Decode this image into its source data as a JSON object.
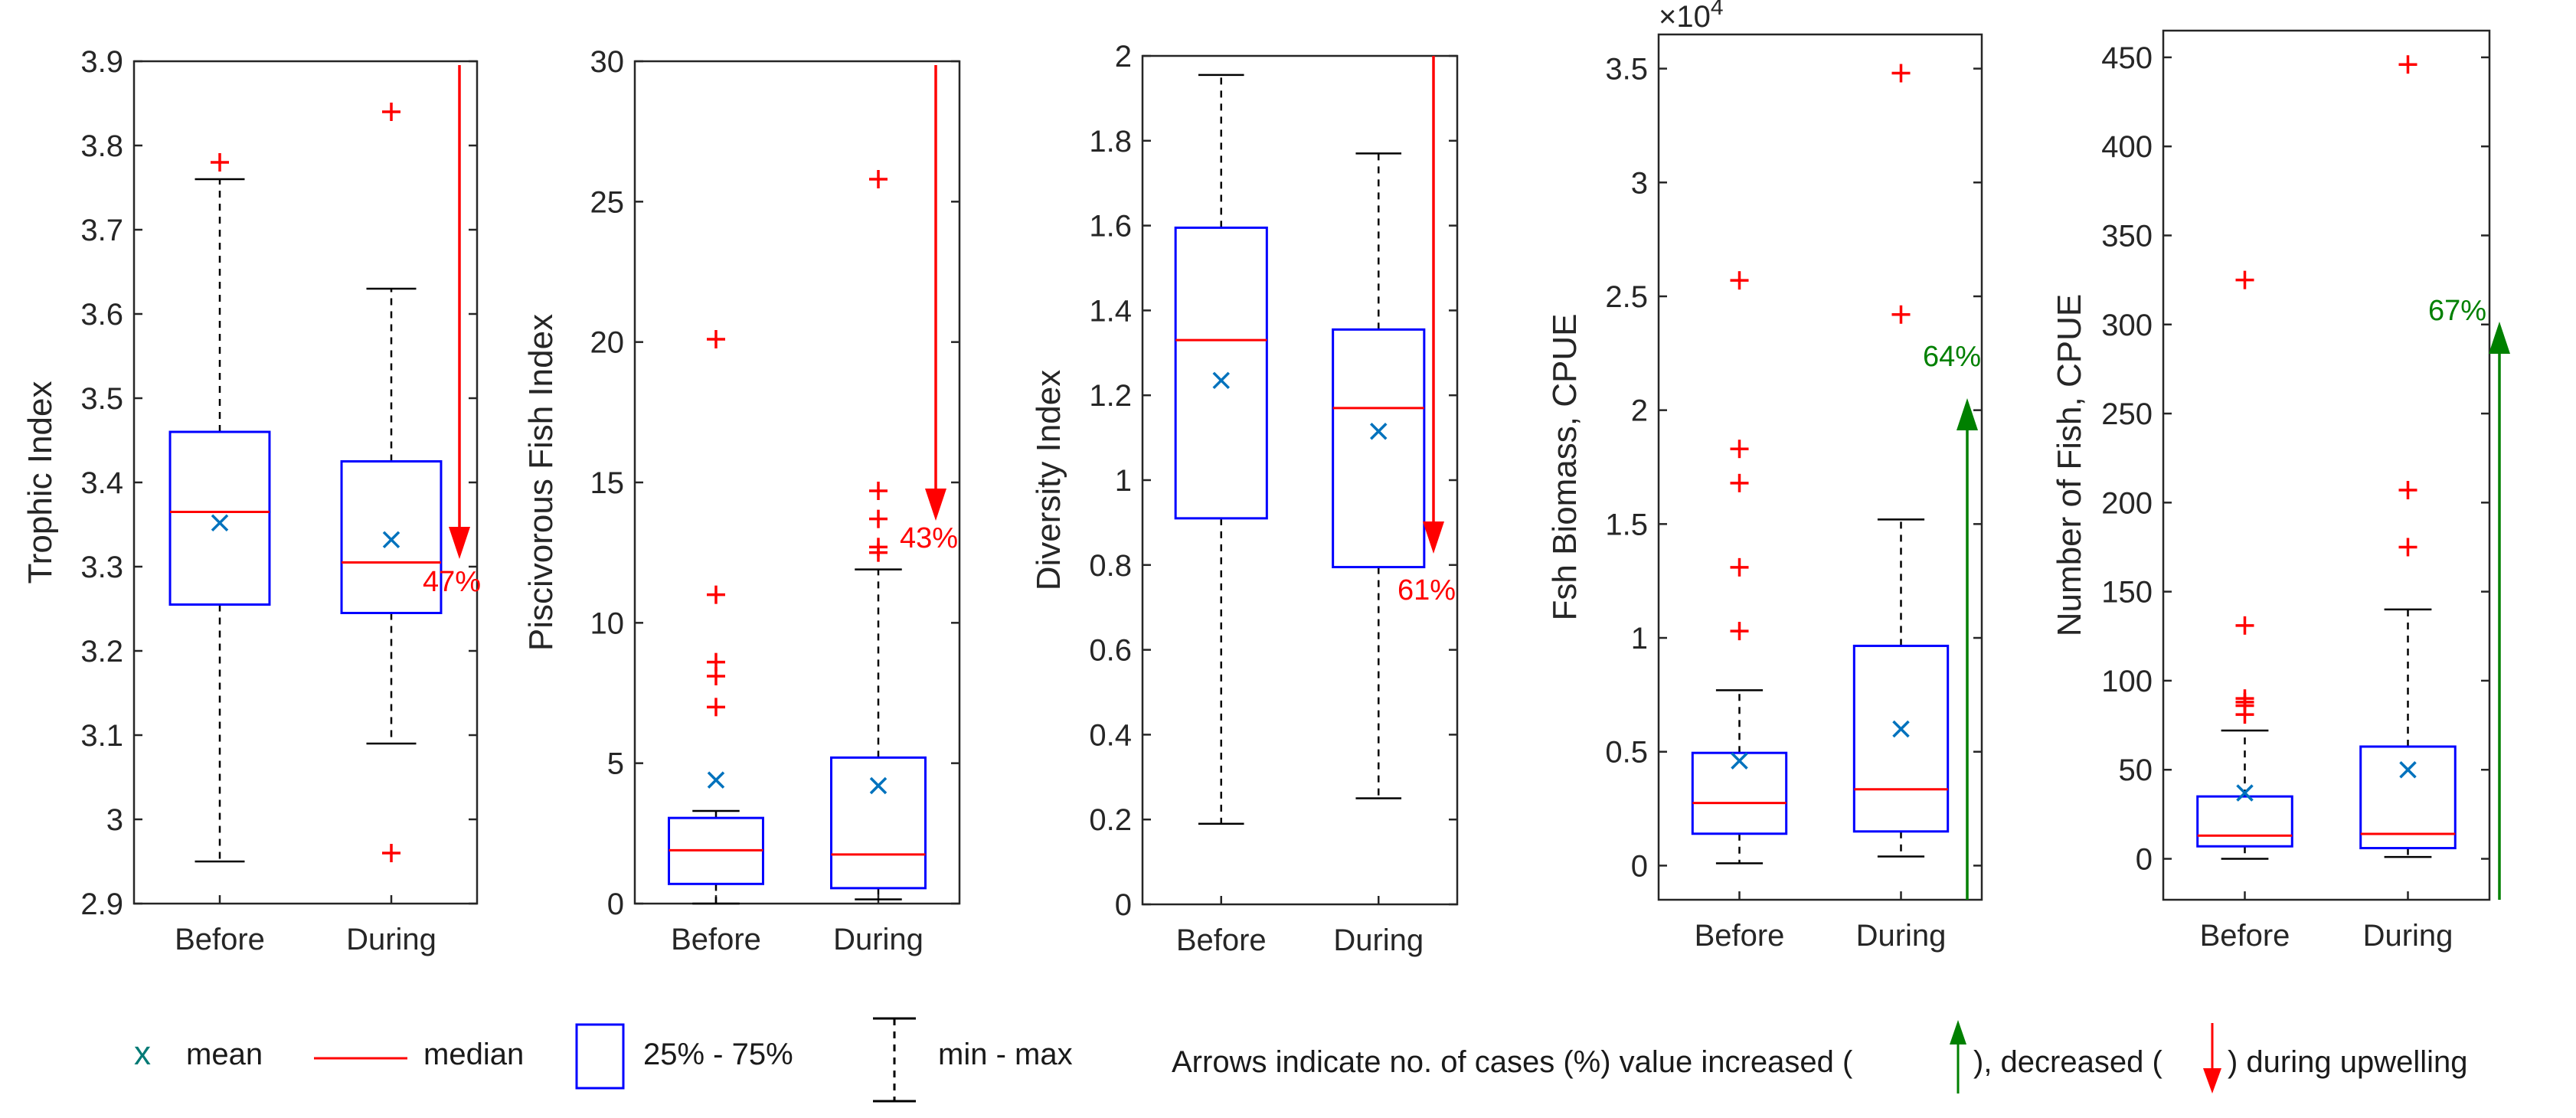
{
  "chart_data": [
    {
      "type": "boxplot",
      "ylabel": "Trophic Index",
      "categories": [
        "Before",
        "During"
      ],
      "ylim": [
        2.9,
        3.9
      ],
      "yticks": [
        2.9,
        3,
        3.1,
        3.2,
        3.3,
        3.4,
        3.5,
        3.6,
        3.7,
        3.8,
        3.9
      ],
      "exponent_label": "",
      "boxes": [
        {
          "category": "Before",
          "min": 2.95,
          "q1": 3.255,
          "median": 3.365,
          "q3": 3.46,
          "max": 3.76,
          "mean": 3.352,
          "outliers": [
            3.78
          ]
        },
        {
          "category": "During",
          "min": 3.09,
          "q1": 3.245,
          "median": 3.305,
          "q3": 3.425,
          "max": 3.63,
          "mean": 3.332,
          "outliers": [
            3.84,
            2.96
          ]
        }
      ],
      "arrow": {
        "direction": "decreased",
        "percent_label": "47%",
        "color": "#ff0000"
      }
    },
    {
      "type": "boxplot",
      "ylabel": "Piscivorous Fish Index",
      "categories": [
        "Before",
        "During"
      ],
      "ylim": [
        0,
        30
      ],
      "yticks": [
        0,
        5,
        10,
        15,
        20,
        25,
        30
      ],
      "exponent_label": "",
      "boxes": [
        {
          "category": "Before",
          "min": 0,
          "q1": 0.7,
          "median": 1.9,
          "q3": 3.05,
          "max": 3.3,
          "mean": 4.4,
          "outliers": [
            20.1,
            11.0,
            8.6,
            8.1,
            7.0
          ]
        },
        {
          "category": "During",
          "min": 0.15,
          "q1": 0.55,
          "median": 1.75,
          "q3": 5.2,
          "max": 11.9,
          "mean": 4.2,
          "outliers": [
            25.8,
            14.7,
            13.7,
            12.7,
            12.5
          ]
        }
      ],
      "arrow": {
        "direction": "decreased",
        "percent_label": "43%",
        "color": "#ff0000"
      }
    },
    {
      "type": "boxplot",
      "ylabel": "Diversity Index",
      "categories": [
        "Before",
        "During"
      ],
      "ylim": [
        0,
        2
      ],
      "yticks": [
        0,
        0.2,
        0.4,
        0.6,
        0.8,
        1,
        1.2,
        1.4,
        1.6,
        1.8,
        2
      ],
      "exponent_label": "",
      "boxes": [
        {
          "category": "Before",
          "min": 0.19,
          "q1": 0.91,
          "median": 1.33,
          "q3": 1.595,
          "max": 1.955,
          "mean": 1.235,
          "outliers": []
        },
        {
          "category": "During",
          "min": 0.25,
          "q1": 0.795,
          "median": 1.17,
          "q3": 1.355,
          "max": 1.77,
          "mean": 1.115,
          "outliers": []
        }
      ],
      "arrow": {
        "direction": "decreased",
        "percent_label": "61%",
        "color": "#ff0000"
      }
    },
    {
      "type": "boxplot",
      "ylabel": "Fsh Biomass, CPUE",
      "categories": [
        "Before",
        "During"
      ],
      "ylim": [
        -1500,
        36500
      ],
      "yticks": [
        0,
        5000,
        10000,
        15000,
        20000,
        25000,
        30000,
        35000
      ],
      "ytick_labels": [
        "0",
        "0.5",
        "1",
        "1.5",
        "2",
        "2.5",
        "3",
        "3.5"
      ],
      "exponent_label": "×10",
      "exponent_power": "4",
      "boxes": [
        {
          "category": "Before",
          "min": 100,
          "q1": 1400,
          "median": 2750,
          "q3": 4950,
          "max": 7700,
          "mean": 4600,
          "outliers": [
            25700,
            18300,
            16800,
            13100,
            10300
          ]
        },
        {
          "category": "During",
          "min": 400,
          "q1": 1500,
          "median": 3350,
          "q3": 9650,
          "max": 15200,
          "mean": 6000,
          "outliers": [
            34800,
            24200
          ]
        }
      ],
      "arrow": {
        "direction": "increased",
        "percent_label": "64%",
        "color": "#008000"
      }
    },
    {
      "type": "boxplot",
      "ylabel": "Number of Fish, CPUE",
      "categories": [
        "Before",
        "During"
      ],
      "ylim": [
        -23,
        465
      ],
      "yticks": [
        0,
        50,
        100,
        150,
        200,
        250,
        300,
        350,
        400,
        450
      ],
      "exponent_label": "",
      "boxes": [
        {
          "category": "Before",
          "min": 0,
          "q1": 7,
          "median": 13,
          "q3": 35,
          "max": 72,
          "mean": 37,
          "outliers": [
            325,
            131,
            90,
            88,
            86,
            81
          ]
        },
        {
          "category": "During",
          "min": 1,
          "q1": 6,
          "median": 14,
          "q3": 63,
          "max": 140,
          "mean": 50,
          "outliers": [
            446,
            207,
            175
          ]
        }
      ],
      "arrow": {
        "direction": "increased",
        "percent_label": "67%",
        "color": "#008000"
      }
    }
  ],
  "colors": {
    "box": "#0000ff",
    "median": "#ff0000",
    "mean": "#0072bd",
    "outlier": "#ff0000",
    "increase_arrow": "#008000",
    "decrease_arrow": "#ff0000",
    "axis": "#262626"
  },
  "legend": {
    "mean_symbol": "x",
    "mean_label": "mean",
    "median_label": "median",
    "box_label": "25% - 75%",
    "whisker_label": "min - max",
    "note_part1": "Arrows indicate no. of cases (%) value increased (",
    "note_part2": "), decreased (",
    "note_part3": ") during upwelling"
  }
}
